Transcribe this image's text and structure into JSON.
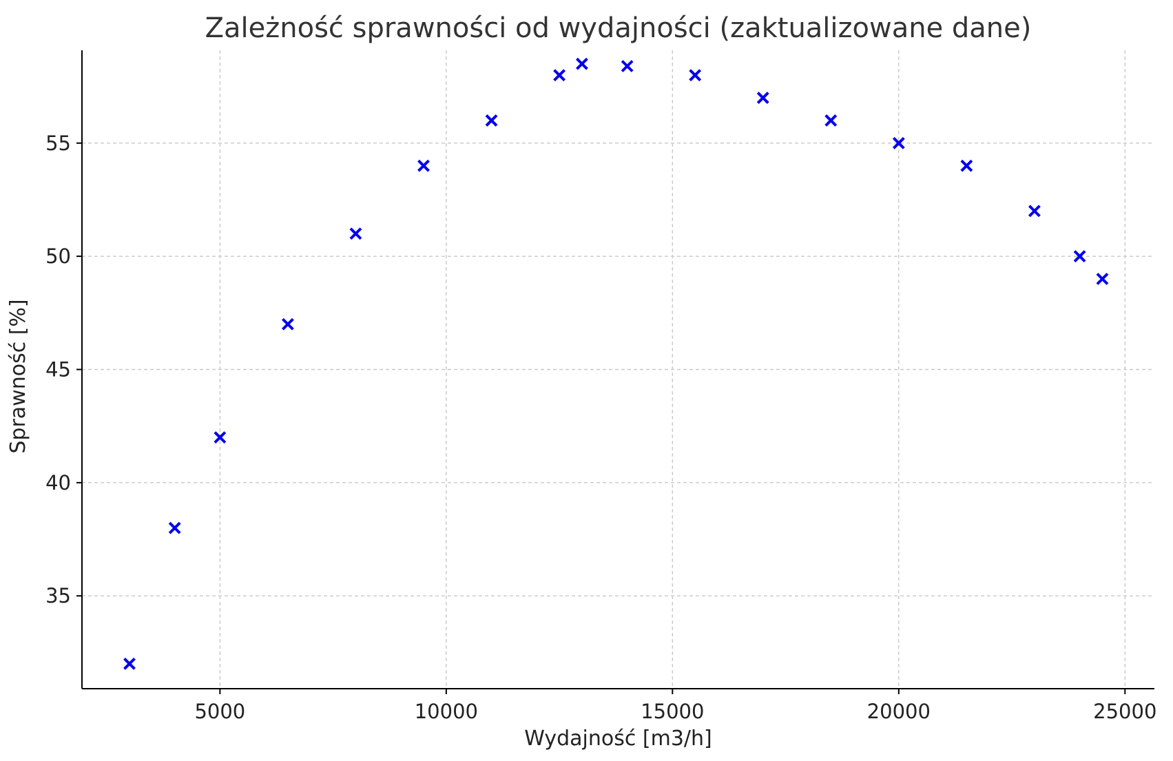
{
  "chart_data": {
    "type": "scatter",
    "title": "Zależność sprawności od wydajności (zaktualizowane dane)",
    "xlabel": "Wydajność [m3/h]",
    "ylabel": "Sprawność [%]",
    "xlim": [
      1950,
      25650
    ],
    "ylim": [
      30.9,
      59.1
    ],
    "xticks": [
      5000,
      10000,
      15000,
      20000,
      25000
    ],
    "yticks": [
      35,
      40,
      45,
      50,
      55
    ],
    "grid": true,
    "marker": "x",
    "color": "#0000ee",
    "series": [
      {
        "x": [
          3000,
          4000,
          5000,
          6500,
          8000,
          9500,
          11000,
          12500,
          13000,
          14000,
          15500,
          17000,
          18500,
          20000,
          21500,
          23000,
          24000,
          24500
        ],
        "y": [
          32,
          38,
          42,
          47,
          51,
          54,
          56,
          58,
          58.5,
          58.4,
          58,
          57,
          56,
          55,
          54,
          52,
          50,
          49
        ]
      }
    ]
  }
}
